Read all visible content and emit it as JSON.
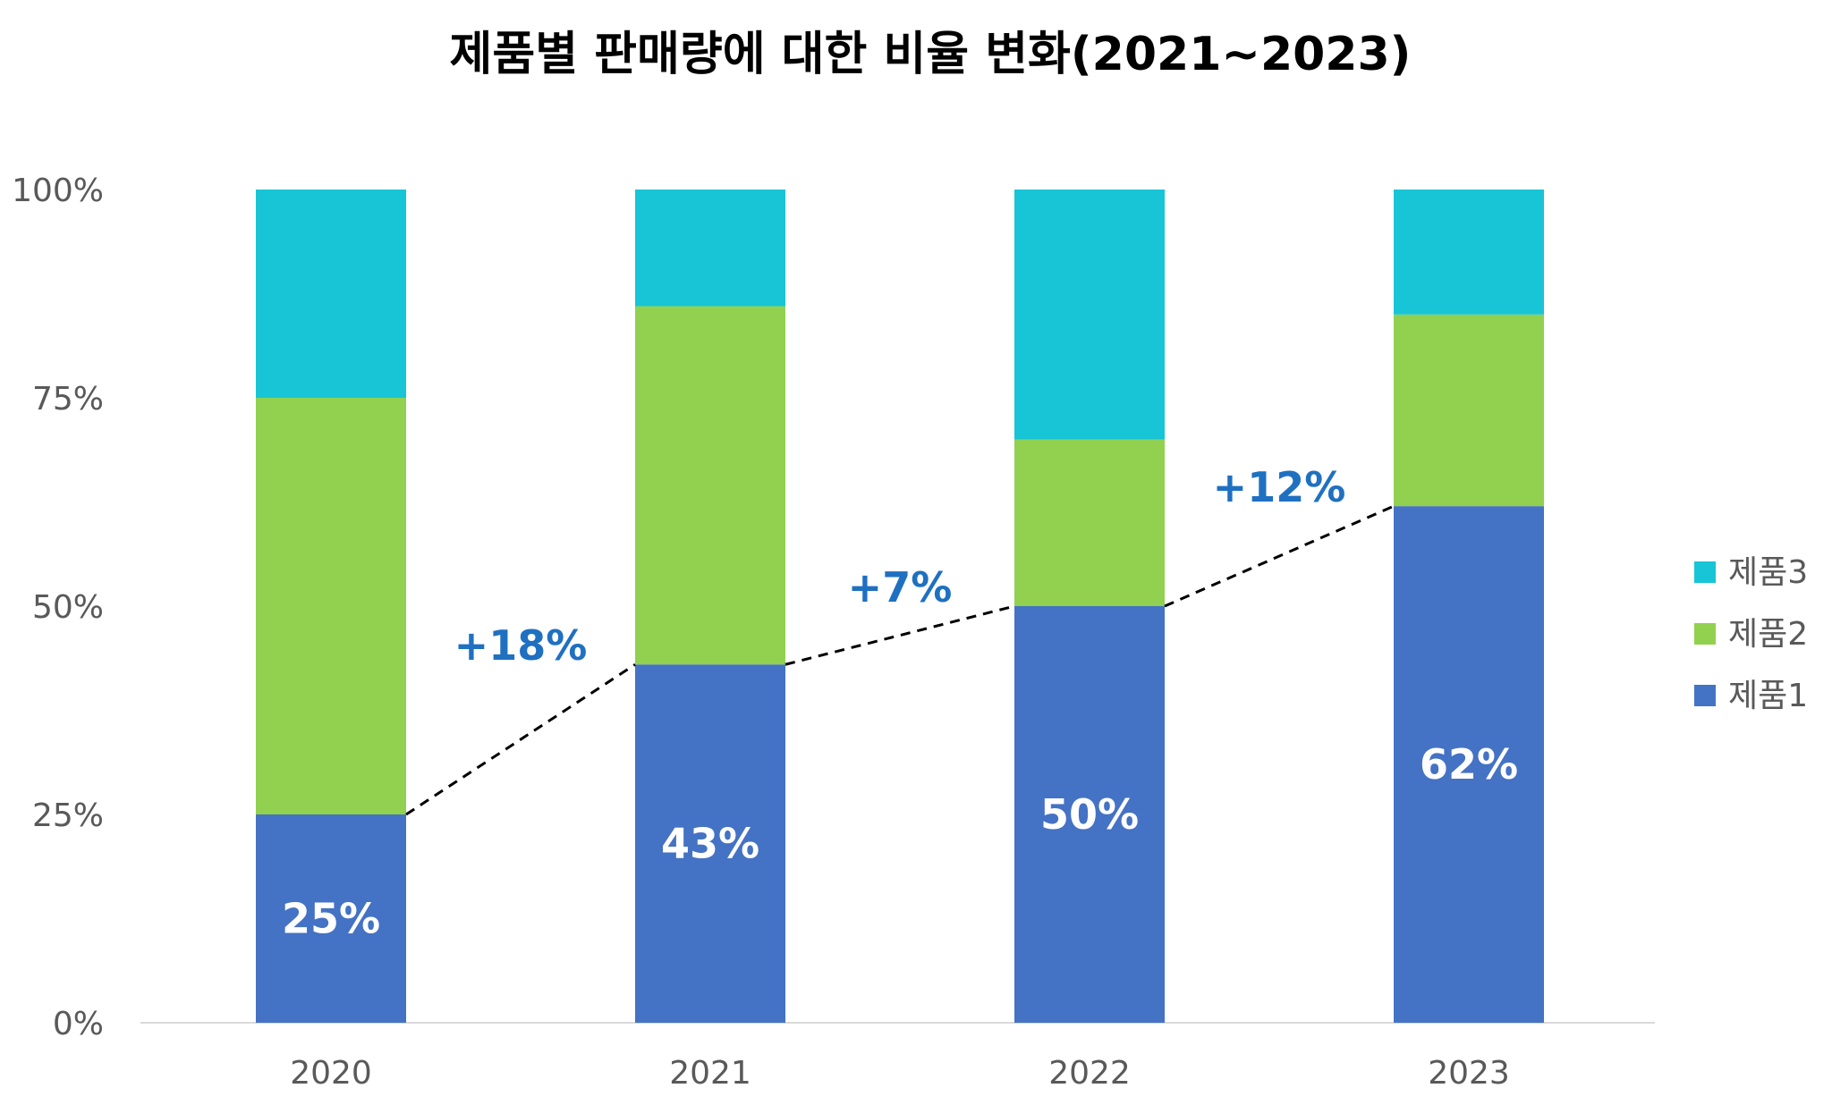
{
  "chart_data": {
    "type": "bar",
    "stacked": true,
    "title": "제품별 판매량에 대한 비율 변화(2021~2023)",
    "categories": [
      "2020",
      "2021",
      "2022",
      "2023"
    ],
    "y_ticks": [
      "0%",
      "25%",
      "50%",
      "75%",
      "100%"
    ],
    "ylim": [
      0,
      100
    ],
    "series": [
      {
        "name": "제품1",
        "color": "#4472c4",
        "values": [
          25,
          43,
          50,
          62
        ],
        "data_labels": [
          "25%",
          "43%",
          "50%",
          "62%"
        ]
      },
      {
        "name": "제품2",
        "color": "#92d050",
        "values": [
          50,
          43,
          20,
          23
        ]
      },
      {
        "name": "제품3",
        "color": "#17c5d6",
        "values": [
          25,
          14,
          30,
          15
        ]
      }
    ],
    "annotations": [
      "+18%",
      "+7%",
      "+12%"
    ],
    "connector_line": "dashed",
    "legend_position": "right"
  }
}
